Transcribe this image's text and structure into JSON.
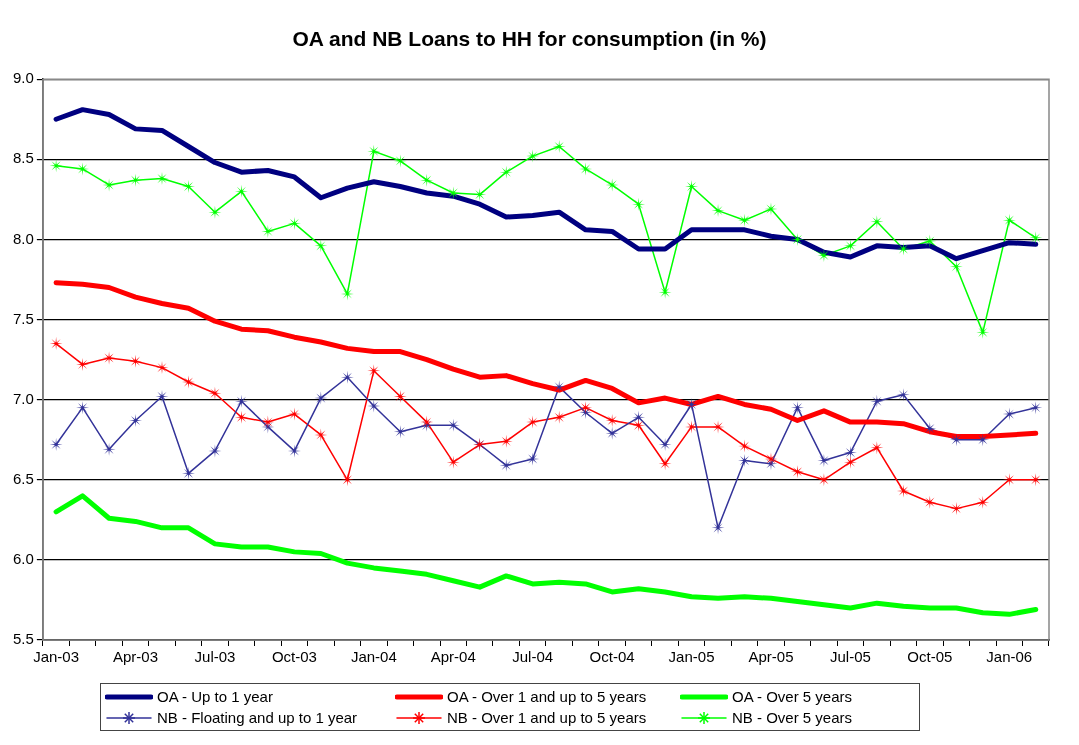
{
  "chart_data": {
    "type": "line",
    "title": "OA and NB Loans to HH for consumption (in %)",
    "categories": [
      "Jan-03",
      null,
      null,
      "Apr-03",
      null,
      null,
      "Jul-03",
      null,
      null,
      "Oct-03",
      null,
      null,
      "Jan-04",
      null,
      null,
      "Apr-04",
      null,
      null,
      "Jul-04",
      null,
      null,
      "Oct-04",
      null,
      null,
      "Jan-05",
      null,
      null,
      "Apr-05",
      null,
      null,
      "Jul-05",
      null,
      null,
      "Oct-05",
      null,
      null,
      "Jan-06",
      null
    ],
    "ylim": [
      5.5,
      9.0
    ],
    "yticks": [
      {
        "value": 5.5,
        "label": "5.5"
      },
      {
        "value": 6,
        "label": "6.0"
      },
      {
        "value": 6.5,
        "label": "6.5"
      },
      {
        "value": 7,
        "label": "7.0"
      },
      {
        "value": 7.5,
        "label": "7.5"
      },
      {
        "value": 8,
        "label": "8.0"
      },
      {
        "value": 8.5,
        "label": "8.5"
      },
      {
        "value": 9,
        "label": "9.0"
      }
    ],
    "grid": "y",
    "legend": "bottom",
    "series": [
      {
        "name": "OA - Up to 1 year",
        "color": "#000080",
        "marker": "none",
        "values": [
          8.75,
          8.81,
          8.78,
          8.69,
          8.68,
          8.58,
          8.48,
          8.42,
          8.43,
          8.39,
          8.26,
          8.32,
          8.36,
          8.33,
          8.29,
          8.27,
          8.22,
          8.14,
          8.15,
          8.17,
          8.06,
          8.05,
          7.94,
          7.94,
          8.06,
          8.06,
          8.06,
          8.02,
          8.0,
          7.92,
          7.89,
          7.96,
          7.95,
          7.96,
          7.88,
          7.93,
          7.98,
          7.97
        ]
      },
      {
        "name": "OA - Over 1 and up to 5 years",
        "color": "#ff0000",
        "marker": "none",
        "values": [
          7.73,
          7.72,
          7.7,
          7.64,
          7.6,
          7.57,
          7.49,
          7.44,
          7.43,
          7.39,
          7.36,
          7.32,
          7.3,
          7.3,
          7.25,
          7.19,
          7.14,
          7.15,
          7.1,
          7.06,
          7.12,
          7.07,
          6.98,
          7.01,
          6.97,
          7.02,
          6.97,
          6.94,
          6.87,
          6.93,
          6.86,
          6.86,
          6.85,
          6.8,
          6.77,
          6.77,
          6.78,
          6.79
        ]
      },
      {
        "name": "OA - Over 5 years",
        "color": "#00ff00",
        "marker": "none",
        "values": [
          6.3,
          6.4,
          6.26,
          6.24,
          6.2,
          6.2,
          6.1,
          6.08,
          6.08,
          6.05,
          6.04,
          5.98,
          5.95,
          5.93,
          5.91,
          5.87,
          5.83,
          5.9,
          5.85,
          5.86,
          5.85,
          5.8,
          5.82,
          5.8,
          5.77,
          5.76,
          5.77,
          5.76,
          5.74,
          5.72,
          5.7,
          5.73,
          5.71,
          5.7,
          5.7,
          5.67,
          5.66,
          5.69
        ]
      },
      {
        "name": "NB - Floating and up to 1 year",
        "color": "#333399",
        "marker": "star",
        "values": [
          6.72,
          6.95,
          6.69,
          6.87,
          7.02,
          6.54,
          6.68,
          6.99,
          6.83,
          6.68,
          7.01,
          7.14,
          6.96,
          6.8,
          6.84,
          6.84,
          6.72,
          6.59,
          6.63,
          7.08,
          6.92,
          6.79,
          6.89,
          6.72,
          6.97,
          6.2,
          6.62,
          6.6,
          6.95,
          6.62,
          6.67,
          6.99,
          7.03,
          6.82,
          6.75,
          6.75,
          6.91,
          6.95
        ]
      },
      {
        "name": "NB - Over 1 and up to 5 years",
        "color": "#ff0000",
        "marker": "star",
        "values": [
          7.35,
          7.22,
          7.26,
          7.24,
          7.2,
          7.11,
          7.04,
          6.89,
          6.86,
          6.91,
          6.78,
          6.5,
          7.18,
          7.02,
          6.86,
          6.61,
          6.72,
          6.74,
          6.86,
          6.89,
          6.95,
          6.87,
          6.84,
          6.6,
          6.83,
          6.83,
          6.71,
          6.63,
          6.55,
          6.5,
          6.61,
          6.7,
          6.43,
          6.36,
          6.32,
          6.36,
          6.5,
          6.5
        ]
      },
      {
        "name": "NB - Over 5 years",
        "color": "#00ff00",
        "marker": "star",
        "values": [
          8.46,
          8.44,
          8.34,
          8.37,
          8.38,
          8.33,
          8.17,
          8.3,
          8.05,
          8.1,
          7.96,
          7.66,
          8.55,
          8.49,
          8.37,
          8.29,
          8.28,
          8.42,
          8.52,
          8.58,
          8.44,
          8.34,
          8.22,
          7.67,
          8.33,
          8.18,
          8.12,
          8.19,
          8.0,
          7.9,
          7.96,
          8.11,
          7.94,
          7.99,
          7.83,
          7.42,
          8.12,
          8.01
        ]
      }
    ]
  }
}
